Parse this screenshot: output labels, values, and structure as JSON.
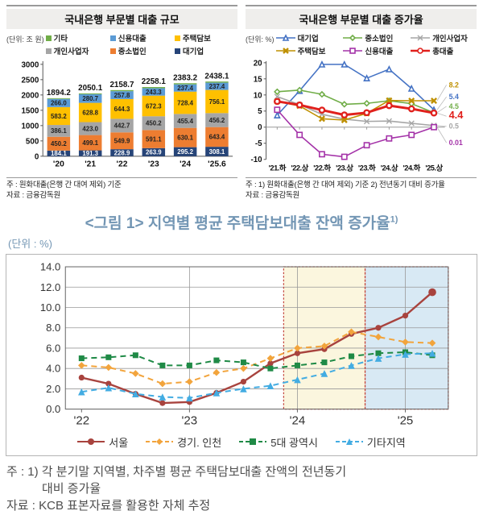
{
  "left_chart": {
    "title": "국내은행 부문별 대출 규모",
    "unit": "(단위: 조 원)",
    "notes": [
      "주 : 원화대출(은행 간 대여 제외) 기준",
      "자료 : 금융감독원"
    ],
    "chart_data": {
      "type": "bar",
      "stacked": true,
      "categories": [
        "'20",
        "'21",
        "'22",
        "'23",
        "'24",
        "'25.6"
      ],
      "totals": [
        1894.2,
        2050.1,
        2158.7,
        2258.1,
        2383.2,
        2438.1
      ],
      "ylim": [
        0,
        3000
      ],
      "yticks": [
        0,
        500,
        1000,
        1500,
        2000,
        2500,
        3000
      ],
      "grid": false,
      "series": [
        {
          "name": "대기업",
          "color": "#264478",
          "label_color": "#ffffff",
          "values": [
            184.1,
            191.3,
            228.9,
            263.9,
            295.2,
            308.1
          ]
        },
        {
          "name": "중소법인",
          "color": "#ED7D31",
          "label_color": "#222222",
          "values": [
            450.2,
            499.1,
            549.9,
            591.1,
            630.1,
            643.4
          ]
        },
        {
          "name": "개인사업자",
          "color": "#A5A5A5",
          "label_color": "#222222",
          "values": [
            386.1,
            423.0,
            442.7,
            450.2,
            455.4,
            456.2
          ]
        },
        {
          "name": "주택담보",
          "color": "#FFC000",
          "label_color": "#222222",
          "values": [
            583.2,
            628.8,
            644.3,
            672.3,
            728.4,
            756.1
          ]
        },
        {
          "name": "신용대출",
          "color": "#5B9BD5",
          "label_color": "#222222",
          "values": [
            266.0,
            280.7,
            257.8,
            243.3,
            237.4,
            237.4
          ]
        },
        {
          "name": "기타",
          "color": "#70AD47",
          "label_color": null,
          "values": [
            24.6,
            27.2,
            35.1,
            37.3,
            36.7,
            36.9
          ]
        }
      ],
      "legend_rows": [
        [
          "기타",
          "신용대출",
          "주택담보"
        ],
        [
          "개인사업자",
          "중소법인",
          "대기업"
        ]
      ]
    }
  },
  "right_chart": {
    "title": "국내은행 부문별 대출 증가율",
    "unit": "(단위: %)",
    "notes": [
      "주 : 1) 원화대출(은행 간 대여 제외) 기준 2) 전년동기 대비 증가율",
      "자료 : 금융감독원"
    ],
    "chart_data": {
      "type": "line",
      "x": [
        "'21.하",
        "'22.상",
        "'22.하",
        "'23.상",
        "'23.하",
        "'24.상",
        "'24.하",
        "'25.상"
      ],
      "ylim": [
        -10,
        20
      ],
      "yticks": [
        -10,
        -5,
        0,
        5,
        10,
        15,
        20
      ],
      "grid": false,
      "series": [
        {
          "name": "대기업",
          "color": "#4472C4",
          "marker": "triangle",
          "values": [
            3.7,
            11.3,
            19.5,
            19.5,
            15.2,
            18.0,
            12.0,
            5.4
          ],
          "end_label": "5.4"
        },
        {
          "name": "중소법인",
          "color": "#70AD47",
          "marker": "diamond",
          "values": [
            11.0,
            11.5,
            10.2,
            7.1,
            7.4,
            8.2,
            7.3,
            4.5
          ],
          "end_label": "4.5"
        },
        {
          "name": "개인사업자",
          "color": "#A6A6A6",
          "marker": "x",
          "values": [
            9.5,
            7.0,
            4.0,
            2.5,
            1.8,
            1.9,
            1.2,
            0.5
          ],
          "end_label": "0.5"
        },
        {
          "name": "주택담보",
          "color": "#BF9000",
          "marker": "xbold",
          "values": [
            8.0,
            6.6,
            2.6,
            2.2,
            4.3,
            8.3,
            8.2,
            8.2
          ],
          "end_label": "8.2"
        },
        {
          "name": "신용대출",
          "color": "#A432A8",
          "marker": "square",
          "values": [
            5.4,
            -2.4,
            -8.4,
            -9.2,
            -5.6,
            -3.5,
            -2.4,
            0.01
          ],
          "end_label": "0.01"
        },
        {
          "name": "총대출",
          "color": "#E0201C",
          "marker": "circle",
          "thick": true,
          "values": [
            8.0,
            6.9,
            5.3,
            3.8,
            4.5,
            6.7,
            5.7,
            4.4
          ],
          "end_label": "4.4"
        }
      ],
      "legend_rows": [
        [
          "대기업",
          "중소법인",
          "개인사업자"
        ],
        [
          "주택담보",
          "신용대출",
          "총대출"
        ]
      ]
    }
  },
  "figure1": {
    "title": "<그림 1> 지역별 평균 주택담보대출 잔액 증가율",
    "title_sup": "1)",
    "unit": "(단위 : %)",
    "notes": [
      "주 : 1) 각 분기말 지역별, 차주별 평균 주택담보대출 잔액의 전년동기",
      "대비 증가율",
      "자료 : KCB 표본자료를 활용한 자체 추정"
    ],
    "chart_data": {
      "type": "line",
      "x_year_labels": [
        "'22",
        "'23",
        "'24",
        "'25"
      ],
      "points_per_year": 4,
      "n_quarters": 14,
      "ylim": [
        0,
        14
      ],
      "ytick_labels": [
        "0.0",
        "2.0",
        "4.0",
        "6.0",
        "8.0",
        "10.0",
        "12.0",
        "14.0"
      ],
      "grid": true,
      "series": [
        {
          "name": "서울",
          "color": "#A8433E",
          "marker": "circle",
          "dashed": false,
          "values": [
            3.1,
            2.5,
            1.5,
            0.6,
            0.7,
            1.6,
            2.7,
            4.5,
            5.5,
            5.9,
            7.4,
            8.0,
            9.2,
            11.5
          ]
        },
        {
          "name": "경기. 인천",
          "color": "#F2A43C",
          "marker": "diamond",
          "dashed": true,
          "values": [
            4.3,
            4.1,
            3.5,
            2.5,
            2.7,
            3.6,
            4.0,
            5.0,
            6.0,
            6.2,
            7.6,
            7.1,
            6.6,
            6.5
          ]
        },
        {
          "name": "5대 광역시",
          "color": "#1F8A46",
          "marker": "square",
          "dashed": true,
          "values": [
            5.0,
            5.1,
            5.3,
            4.3,
            4.3,
            4.8,
            4.6,
            4.0,
            4.3,
            4.6,
            5.2,
            5.5,
            5.6,
            5.3
          ]
        },
        {
          "name": "기타지역",
          "color": "#43ACE2",
          "marker": "triangle",
          "dashed": true,
          "values": [
            1.7,
            2.1,
            1.5,
            1.2,
            1.1,
            1.6,
            2.0,
            2.3,
            2.9,
            3.5,
            4.3,
            5.0,
            5.4,
            5.5
          ]
        }
      ],
      "highlight_bands": [
        {
          "color": "#FBF6DE",
          "border": "#C4463C",
          "from_quarter": "'24.1Q",
          "to_quarter": "'24.3Q"
        },
        {
          "color": "#D8E9F4",
          "border": "#C4463C",
          "from_quarter": "'24.4Q",
          "to_quarter": "'25.2Q"
        }
      ]
    }
  }
}
